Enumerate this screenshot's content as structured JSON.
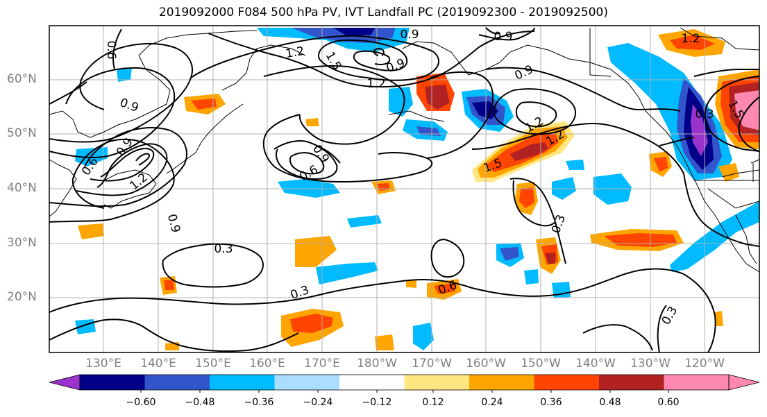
{
  "title": "2019092000 F084 500 hPa PV, IVT Landfall PC (2019092300 - 2019092500)",
  "colors": {
    "neg_060": "#9933cc",
    "neg_048": "#000088",
    "neg_036": "#3355cc",
    "neg_024": "#00bbff",
    "neg_012": "#aaddff",
    "zero": "#ffffff",
    "pos_012": "#ffe680",
    "pos_024": "#ffa500",
    "pos_036": "#ff4500",
    "pos_048": "#b22222",
    "pos_060": "#ff88b0",
    "land": "#000000",
    "grid": "#b0b0b0",
    "contour": "#000000"
  },
  "lat_labels": [
    "60°N",
    "50°N",
    "40°N",
    "30°N",
    "20°N"
  ],
  "lon_labels": [
    "130°E",
    "140°E",
    "150°E",
    "160°E",
    "170°E",
    "180°W",
    "170°W",
    "160°W",
    "150°W",
    "140°W",
    "130°W",
    "120°W"
  ],
  "colorbar": {
    "ticks": [
      "−0.60",
      "−0.48",
      "−0.36",
      "−0.24",
      "−0.12",
      "0.12",
      "0.24",
      "0.36",
      "0.48",
      "0.60"
    ],
    "bins": [
      "neg_060",
      "neg_048",
      "neg_036",
      "neg_024",
      "neg_012",
      "zero",
      "pos_012",
      "pos_024",
      "pos_036",
      "pos_048",
      "pos_060",
      "pos_060"
    ]
  },
  "contour_labels": [
    "0.9",
    "1.2",
    "1.5",
    "0.9",
    "0.6",
    "0.9",
    "1.2",
    "0.9",
    "1.5",
    "0.9",
    "0.6",
    "1.2",
    "0.9",
    "1.2",
    "1.5",
    "0.6",
    "1.2",
    "0.9",
    "0.3",
    "0.3",
    "0.3",
    "0.6",
    "0.3",
    "0.3",
    "0.9",
    "1.2"
  ]
}
